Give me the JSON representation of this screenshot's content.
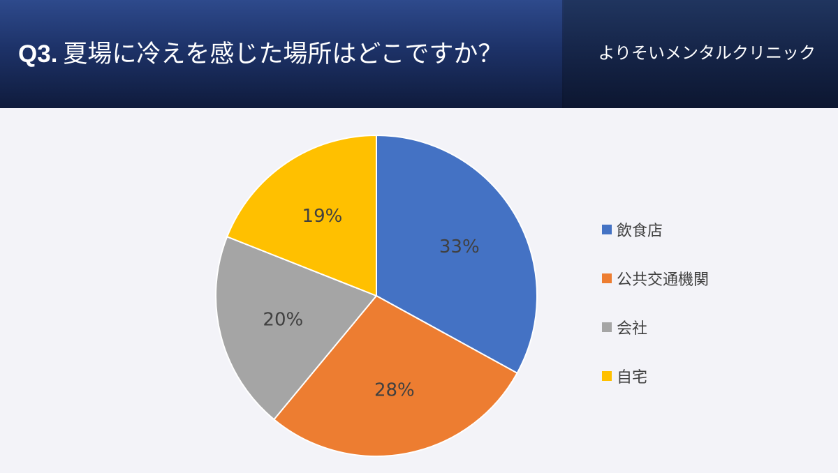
{
  "header": {
    "question_number": "Q3.",
    "question_text": "夏場に冷えを感じた場所はどこですか？",
    "clinic_name": "よりそいメンタルクリニック"
  },
  "chart_data": {
    "type": "pie",
    "categories": [
      "飲食店",
      "公共交通機関",
      "会社",
      "自宅"
    ],
    "values": [
      33,
      28,
      20,
      19
    ],
    "data_labels": [
      "33%",
      "28%",
      "20%",
      "19%"
    ],
    "colors": [
      "#4472c4",
      "#ed7d31",
      "#a5a5a5",
      "#ffc000"
    ],
    "legend_position": "right"
  }
}
